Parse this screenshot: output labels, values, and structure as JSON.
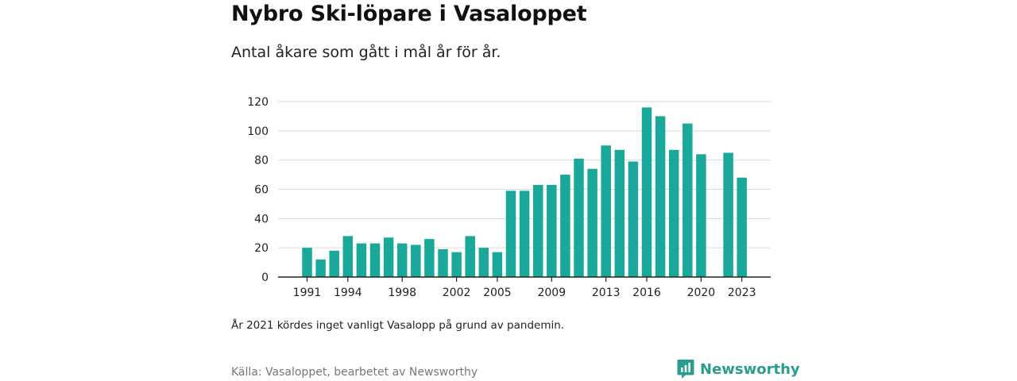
{
  "title": "Nybro Ski-löpare i Vasaloppet",
  "subtitle": "Antal åkare som gått i mål år för år.",
  "note": "År 2021 kördes inget vanligt Vasalopp på grund av pandemin.",
  "source": "Källa: Vasaloppet, bearbetet av Newsworthy",
  "brand": {
    "name": "Newsworthy",
    "icon": "newsworthy-logo-icon",
    "color": "#2a9d8f"
  },
  "chart_data": {
    "type": "bar",
    "bar_color": "#1aa89a",
    "categories": [
      1991,
      1992,
      1993,
      1994,
      1995,
      1996,
      1997,
      1998,
      1999,
      2000,
      2001,
      2002,
      2003,
      2004,
      2005,
      2006,
      2007,
      2008,
      2009,
      2010,
      2011,
      2012,
      2013,
      2014,
      2015,
      2016,
      2017,
      2018,
      2019,
      2020,
      2021,
      2022,
      2023
    ],
    "values": [
      20,
      12,
      18,
      28,
      23,
      23,
      27,
      23,
      22,
      26,
      19,
      17,
      28,
      20,
      17,
      59,
      59,
      63,
      63,
      70,
      81,
      74,
      90,
      87,
      79,
      116,
      110,
      87,
      105,
      84,
      null,
      85,
      68
    ],
    "x_tick_labels": [
      "1991",
      "1994",
      "1998",
      "2002",
      "2005",
      "2009",
      "2013",
      "2016",
      "2020",
      "2023"
    ],
    "y_ticks": [
      0,
      20,
      40,
      60,
      80,
      100,
      120
    ],
    "ylim": [
      0,
      120
    ],
    "grid": true
  }
}
